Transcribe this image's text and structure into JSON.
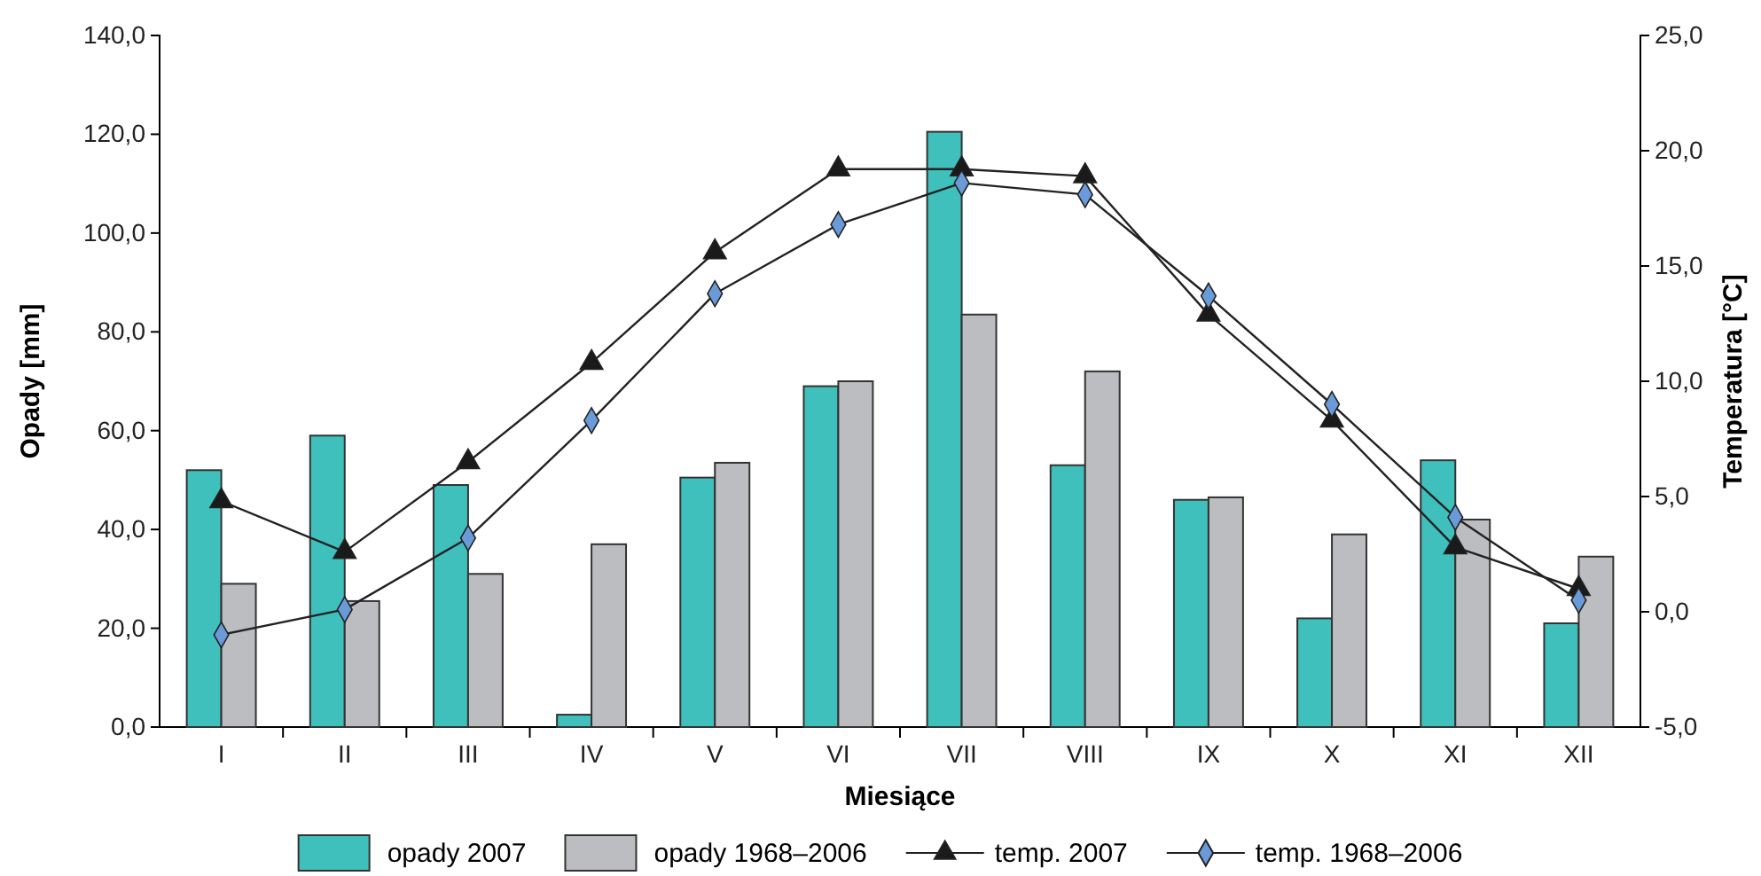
{
  "chart_data": {
    "type": "bar",
    "xlabel": "Miesiące",
    "ylabel": "Opady [mm]",
    "y2label": "Temperatura [°C]",
    "categories": [
      "I",
      "II",
      "III",
      "IV",
      "V",
      "VI",
      "VII",
      "VIII",
      "IX",
      "X",
      "XI",
      "XII"
    ],
    "series": [
      {
        "name": "opady 2007",
        "color": "#40c0bc",
        "values": [
          52,
          59,
          49,
          2.5,
          50.5,
          69,
          120.5,
          53,
          46,
          22,
          54,
          21
        ]
      },
      {
        "name": "opady 1968–2006",
        "color": "#bcbdc1",
        "values": [
          29,
          25.5,
          31,
          37,
          53.5,
          70,
          83.5,
          72,
          46.5,
          39,
          42,
          34.5
        ]
      },
      {
        "name": "temp. 2007",
        "type": "line",
        "axis": "y2",
        "marker": "triangle",
        "color": "#1a1a1a",
        "values": [
          4.8,
          2.6,
          6.5,
          10.8,
          15.6,
          19.2,
          19.2,
          18.9,
          12.9,
          8.3,
          2.8,
          1.0
        ]
      },
      {
        "name": "temp. 1968–2006",
        "type": "line",
        "axis": "y2",
        "marker": "diamond",
        "color": "#6a9bd8",
        "values": [
          -1.0,
          0.1,
          3.2,
          8.3,
          13.8,
          16.8,
          18.6,
          18.1,
          13.7,
          9.0,
          4.1,
          0.5
        ]
      }
    ],
    "ylim": [
      0,
      140
    ],
    "yticks": [
      {
        "value": 0,
        "label": "0,0"
      },
      {
        "value": 20,
        "label": "20,0"
      },
      {
        "value": 40,
        "label": "40,0"
      },
      {
        "value": 60,
        "label": "60,0"
      },
      {
        "value": 80,
        "label": "80,0"
      },
      {
        "value": 100,
        "label": "100,0"
      },
      {
        "value": 120,
        "label": "120,0"
      },
      {
        "value": 140,
        "label": "140,0"
      }
    ],
    "y2lim": [
      -5,
      25
    ],
    "y2ticks": [
      {
        "value": -5,
        "label": "-5,0"
      },
      {
        "value": 0,
        "label": "0,0"
      },
      {
        "value": 5,
        "label": "5,0"
      },
      {
        "value": 10,
        "label": "10,0"
      },
      {
        "value": 15,
        "label": "15,0"
      },
      {
        "value": 20,
        "label": "20,0"
      },
      {
        "value": 25,
        "label": "25,0"
      }
    ],
    "legend": "bottom"
  }
}
